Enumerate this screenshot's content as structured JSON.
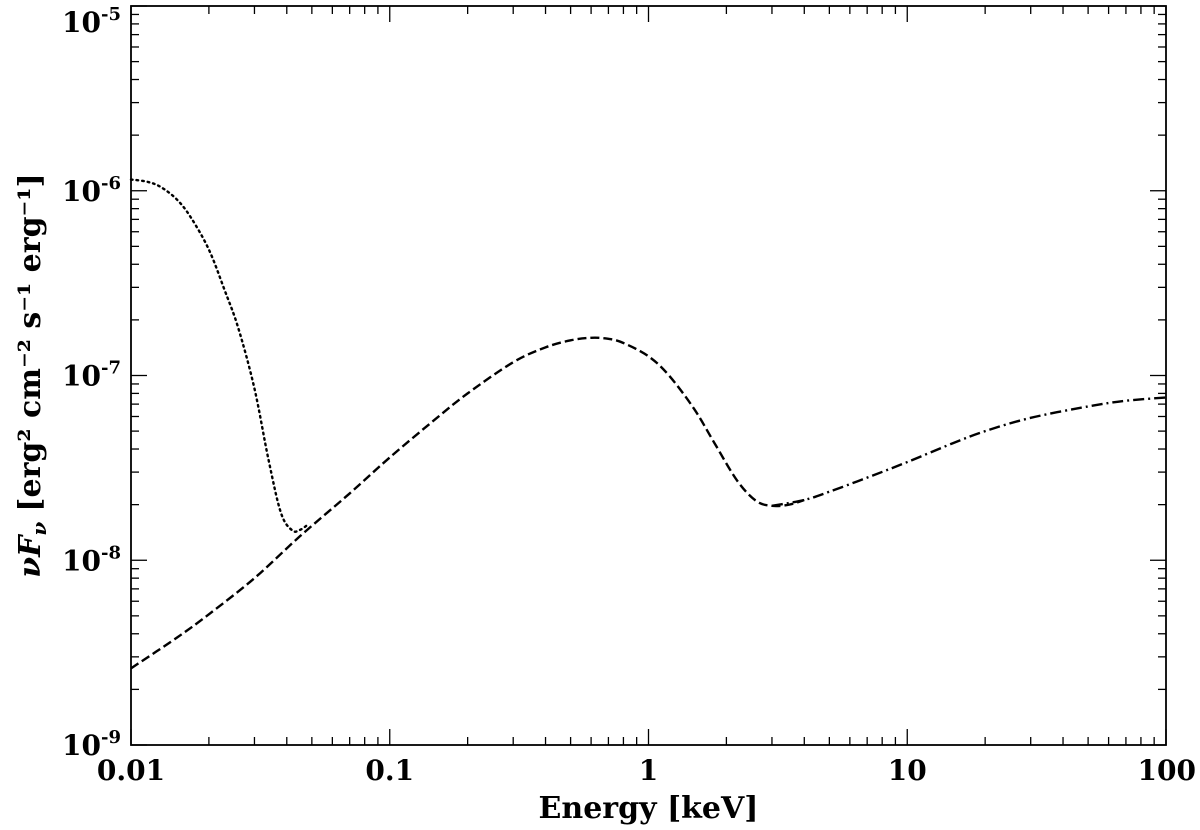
{
  "chart_data": {
    "type": "line",
    "xscale": "log",
    "yscale": "log",
    "xlim": [
      0.01,
      100
    ],
    "ylim": [
      1e-09,
      1e-05
    ],
    "grid": false,
    "xlabel": "Energy [keV]",
    "ylabel": {
      "prefix": "νF",
      "subscript": "ν",
      "unit": "[erg² cm⁻² s⁻¹ erg⁻¹]"
    },
    "xticks": [
      {
        "value": 0.01,
        "label": "0.01"
      },
      {
        "value": 0.1,
        "label": "0.1"
      },
      {
        "value": 1,
        "label": "1"
      },
      {
        "value": 10,
        "label": "10"
      },
      {
        "value": 100,
        "label": "100"
      }
    ],
    "yticks": [
      {
        "value": 1e-09,
        "base": "10",
        "exp": "-9"
      },
      {
        "value": 1e-08,
        "base": "10",
        "exp": "-8"
      },
      {
        "value": 1e-07,
        "base": "10",
        "exp": "-7"
      },
      {
        "value": 1e-06,
        "base": "10",
        "exp": "-6"
      },
      {
        "value": 1e-05,
        "base": "10",
        "exp": "-5"
      }
    ],
    "series": [
      {
        "style": "dotted",
        "x": [
          0.01,
          0.0115,
          0.013,
          0.015,
          0.017,
          0.02,
          0.023,
          0.026,
          0.03,
          0.034,
          0.038,
          0.042,
          0.045,
          0.048
        ],
        "y": [
          1.15e-06,
          1.12e-06,
          1.05e-06,
          9e-07,
          7.2e-07,
          4.8e-07,
          2.9e-07,
          1.8e-07,
          8.5e-08,
          3.5e-08,
          1.8e-08,
          1.45e-08,
          1.46e-08,
          1.55e-08
        ]
      },
      {
        "style": "dashed",
        "x": [
          0.01,
          0.015,
          0.02,
          0.03,
          0.045,
          0.07,
          0.1,
          0.15,
          0.2,
          0.3,
          0.4,
          0.5,
          0.6,
          0.7,
          0.8,
          1.0,
          1.2,
          1.5,
          1.8,
          2.2,
          2.6,
          3.0,
          3.5,
          4.0
        ],
        "y": [
          2.6e-09,
          3.8e-09,
          5.1e-09,
          8e-09,
          1.35e-08,
          2.3e-08,
          3.6e-08,
          5.8e-08,
          8e-08,
          1.18e-07,
          1.42e-07,
          1.55e-07,
          1.6e-07,
          1.58e-07,
          1.5e-07,
          1.27e-07,
          1e-07,
          6.6e-08,
          4.3e-08,
          2.7e-08,
          2.1e-08,
          1.97e-08,
          2e-08,
          2.12e-08
        ]
      },
      {
        "style": "dash-dot",
        "x": [
          3.0,
          4.0,
          5.0,
          7.0,
          10,
          15,
          20,
          30,
          50,
          70,
          100
        ],
        "y": [
          1.97e-08,
          2.12e-08,
          2.35e-08,
          2.8e-08,
          3.4e-08,
          4.3e-08,
          5e-08,
          5.9e-08,
          6.8e-08,
          7.3e-08,
          7.6e-08
        ]
      }
    ]
  }
}
